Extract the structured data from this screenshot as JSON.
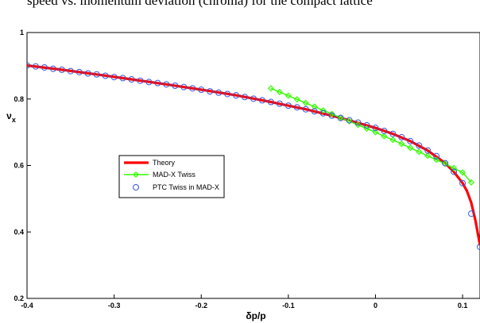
{
  "header_text": "speed vs. momentum deviation (chroma) for the compact lattice",
  "chart_data": {
    "type": "line",
    "xlabel": "δp/p",
    "ylabel": "νx",
    "xlim": [
      -0.4,
      0.12
    ],
    "ylim": [
      0.2,
      1.0
    ],
    "xticks": [
      "-0.4",
      "-0.3",
      "-0.2",
      "-0.1",
      "0",
      "0.1"
    ],
    "xtick_values": [
      -0.4,
      -0.3,
      -0.2,
      -0.1,
      0,
      0.1
    ],
    "yticks": [
      "0.2",
      "0.4",
      "0.6",
      "0.8",
      "1"
    ],
    "ytick_values": [
      0.2,
      0.4,
      0.6,
      0.8,
      1.0
    ],
    "grid": false,
    "legend_position": "center-left",
    "series": [
      {
        "name": "Theory",
        "style": "line",
        "color": "#ff0000",
        "x": [
          -0.4,
          -0.36,
          -0.32,
          -0.28,
          -0.24,
          -0.2,
          -0.16,
          -0.12,
          -0.08,
          -0.04,
          0.0,
          0.02,
          0.04,
          0.06,
          0.08,
          0.09,
          0.1,
          0.105,
          0.11,
          0.115,
          0.12
        ],
        "y": [
          0.901,
          0.888,
          0.874,
          0.859,
          0.844,
          0.828,
          0.811,
          0.791,
          0.769,
          0.743,
          0.713,
          0.695,
          0.673,
          0.645,
          0.607,
          0.581,
          0.547,
          0.523,
          0.488,
          0.432,
          0.36
        ]
      },
      {
        "name": "MAD-X Twiss",
        "style": "line+diamond",
        "color": "#33ff00",
        "x": [
          -0.12,
          -0.11,
          -0.1,
          -0.09,
          -0.08,
          -0.07,
          -0.06,
          -0.05,
          -0.04,
          -0.03,
          -0.02,
          -0.01,
          0.0,
          0.01,
          0.02,
          0.03,
          0.04,
          0.05,
          0.06,
          0.07,
          0.08,
          0.09,
          0.1,
          0.11
        ],
        "y": [
          0.832,
          0.821,
          0.81,
          0.799,
          0.788,
          0.777,
          0.766,
          0.755,
          0.744,
          0.733,
          0.722,
          0.711,
          0.7,
          0.688,
          0.677,
          0.665,
          0.653,
          0.641,
          0.629,
          0.617,
          0.605,
          0.592,
          0.579,
          0.549
        ]
      },
      {
        "name": "PTC Twiss in MAD-X",
        "style": "open-circle",
        "color": "#3355dd",
        "x": [
          -0.4,
          -0.39,
          -0.38,
          -0.37,
          -0.36,
          -0.35,
          -0.34,
          -0.33,
          -0.32,
          -0.31,
          -0.3,
          -0.29,
          -0.28,
          -0.27,
          -0.26,
          -0.25,
          -0.24,
          -0.23,
          -0.22,
          -0.21,
          -0.2,
          -0.19,
          -0.18,
          -0.17,
          -0.16,
          -0.15,
          -0.14,
          -0.13,
          -0.12,
          -0.11,
          -0.1,
          -0.09,
          -0.08,
          -0.07,
          -0.06,
          -0.05,
          -0.04,
          -0.03,
          -0.02,
          -0.01,
          0.0,
          0.01,
          0.02,
          0.03,
          0.04,
          0.05,
          0.06,
          0.07,
          0.08,
          0.09,
          0.1,
          0.11,
          0.12
        ],
        "y": [
          0.901,
          0.898,
          0.895,
          0.891,
          0.888,
          0.884,
          0.881,
          0.877,
          0.874,
          0.87,
          0.866,
          0.863,
          0.859,
          0.855,
          0.851,
          0.848,
          0.844,
          0.84,
          0.836,
          0.832,
          0.828,
          0.823,
          0.819,
          0.815,
          0.811,
          0.806,
          0.801,
          0.796,
          0.791,
          0.786,
          0.78,
          0.775,
          0.769,
          0.763,
          0.757,
          0.75,
          0.743,
          0.736,
          0.729,
          0.721,
          0.713,
          0.704,
          0.695,
          0.685,
          0.673,
          0.66,
          0.645,
          0.628,
          0.607,
          0.581,
          0.547,
          0.455,
          0.355
        ]
      }
    ]
  }
}
